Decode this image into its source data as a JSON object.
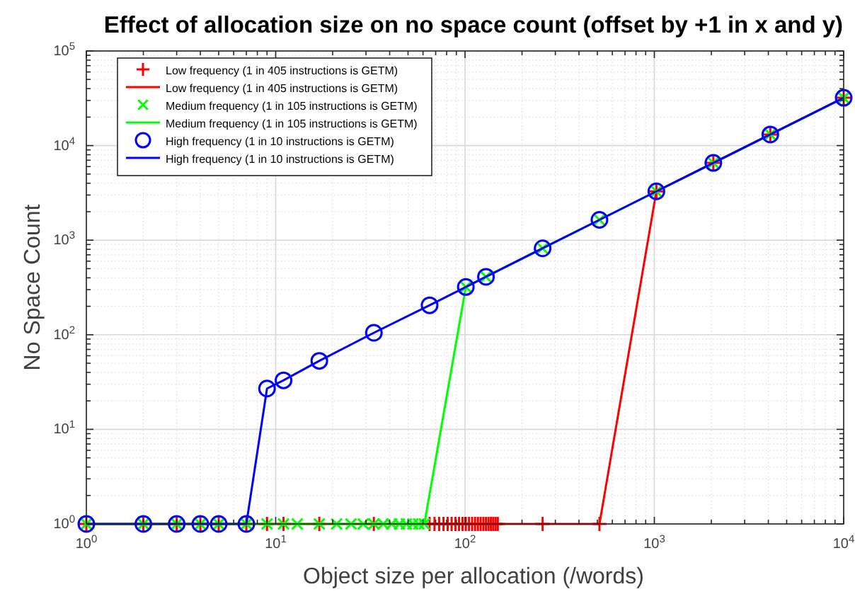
{
  "chart_data": {
    "type": "line",
    "title": "Effect of allocation size on no space count (offset by +1 in x and y)",
    "xlabel": "Object size per allocation (/words)",
    "ylabel": "No Space Count",
    "log": "xy",
    "grid": true,
    "legend": "top left",
    "xlim": [
      1,
      10000
    ],
    "ylim": [
      1,
      100000
    ],
    "xticks": [
      {
        "value": 1,
        "label": "10$^{0}$"
      },
      {
        "value": 10,
        "label": "10$^{1}$"
      },
      {
        "value": 100,
        "label": "10$^{2}$"
      },
      {
        "value": 1000,
        "label": "10$^{3}$"
      },
      {
        "value": 10000,
        "label": "10$^{4}$"
      }
    ],
    "yticks": [
      {
        "value": 1,
        "label": "10$^{0}$"
      },
      {
        "value": 10,
        "label": "10$^{1}$"
      },
      {
        "value": 100,
        "label": "10$^{2}$"
      },
      {
        "value": 1000,
        "label": "10$^{3}$"
      },
      {
        "value": 10000,
        "label": "10$^{4}$"
      },
      {
        "value": 100000,
        "label": "10$^{5}$"
      }
    ],
    "series": [
      {
        "name": "Low frequency (1 in 405 instructions is GETM)",
        "type": "scatter",
        "marker": "cross",
        "color": "#ff0000",
        "x": [
          1,
          2,
          3,
          4,
          5,
          7,
          9,
          11,
          17,
          33,
          65,
          69,
          73,
          77,
          81,
          85,
          89,
          93,
          97,
          101,
          105,
          109,
          113,
          117,
          121,
          125,
          129,
          133,
          137,
          141,
          145,
          149,
          257,
          513,
          1025,
          2049,
          4097,
          10000
        ],
        "values": [
          1,
          1,
          1,
          1,
          1,
          1,
          1,
          1,
          1,
          1,
          1,
          1,
          1,
          1,
          1,
          1,
          1,
          1,
          1,
          1,
          1,
          1,
          1,
          1,
          1,
          1,
          1,
          1,
          1,
          1,
          1,
          1,
          1,
          1,
          3280,
          6560,
          13100,
          32000
        ]
      },
      {
        "name": "Low frequency (1 in 405 instructions is GETM)",
        "type": "line",
        "marker": "none",
        "color": "#ff0000",
        "x": [
          1,
          2,
          3,
          4,
          5,
          7,
          9,
          11,
          17,
          33,
          65,
          69,
          73,
          77,
          81,
          85,
          89,
          93,
          97,
          101,
          105,
          109,
          113,
          117,
          121,
          125,
          129,
          133,
          137,
          141,
          145,
          149,
          257,
          513,
          1025,
          2049,
          4097,
          10000
        ],
        "values": [
          1,
          1,
          1,
          1,
          1,
          1,
          1,
          1,
          1,
          1,
          1,
          1,
          1,
          1,
          1,
          1,
          1,
          1,
          1,
          1,
          1,
          1,
          1,
          1,
          1,
          1,
          1,
          1,
          1,
          1,
          1,
          1,
          1,
          1,
          3280,
          6560,
          13100,
          32000
        ]
      },
      {
        "name": "Medium frequency (1 in 105 instructions is GETM)",
        "type": "scatter",
        "marker": "x",
        "color": "#00ff00",
        "x": [
          1,
          2,
          3,
          4,
          5,
          7,
          9,
          11,
          13,
          17,
          21,
          25,
          29,
          33,
          37,
          41,
          45,
          49,
          53,
          57,
          61,
          101,
          129,
          257,
          513,
          1025,
          2049,
          4097,
          10000
        ],
        "values": [
          1,
          1,
          1,
          1,
          1,
          1,
          1,
          1,
          1,
          1,
          1,
          1,
          1,
          1,
          1,
          1,
          1,
          1,
          1,
          1,
          1,
          320,
          410,
          820,
          1640,
          3280,
          6560,
          13100,
          32000
        ]
      },
      {
        "name": "Medium frequency (1 in 105 instructions is GETM)",
        "type": "line",
        "marker": "none",
        "color": "#00ff00",
        "x": [
          1,
          2,
          3,
          4,
          5,
          7,
          9,
          11,
          13,
          17,
          21,
          25,
          29,
          33,
          37,
          41,
          45,
          49,
          53,
          57,
          61,
          101,
          129,
          257,
          513,
          1025,
          2049,
          4097,
          10000
        ],
        "values": [
          1,
          1,
          1,
          1,
          1,
          1,
          1,
          1,
          1,
          1,
          1,
          1,
          1,
          1,
          1,
          1,
          1,
          1,
          1,
          1,
          1,
          320,
          410,
          820,
          1640,
          3280,
          6560,
          13100,
          32000
        ]
      },
      {
        "name": "High frequency (1 in 10 instructions is GETM)",
        "type": "scatter",
        "marker": "circle",
        "color": "#0000ff",
        "x": [
          1,
          2,
          3,
          4,
          5,
          7,
          9,
          11,
          17,
          33,
          65,
          101,
          129,
          257,
          513,
          1025,
          2049,
          4097,
          10000
        ],
        "values": [
          1,
          1,
          1,
          1,
          1,
          1,
          27,
          33,
          53,
          105,
          205,
          320,
          410,
          820,
          1640,
          3280,
          6560,
          13100,
          32000
        ]
      },
      {
        "name": "High frequency (1 in 10 instructions is GETM)",
        "type": "line",
        "marker": "none",
        "color": "#0000ff",
        "x": [
          1,
          2,
          3,
          4,
          5,
          7,
          9,
          11,
          17,
          33,
          65,
          101,
          129,
          257,
          513,
          1025,
          2049,
          4097,
          10000
        ],
        "values": [
          1,
          1,
          1,
          1,
          1,
          1,
          27,
          33,
          53,
          105,
          205,
          320,
          410,
          820,
          1640,
          3280,
          6560,
          13100,
          32000
        ]
      }
    ]
  }
}
